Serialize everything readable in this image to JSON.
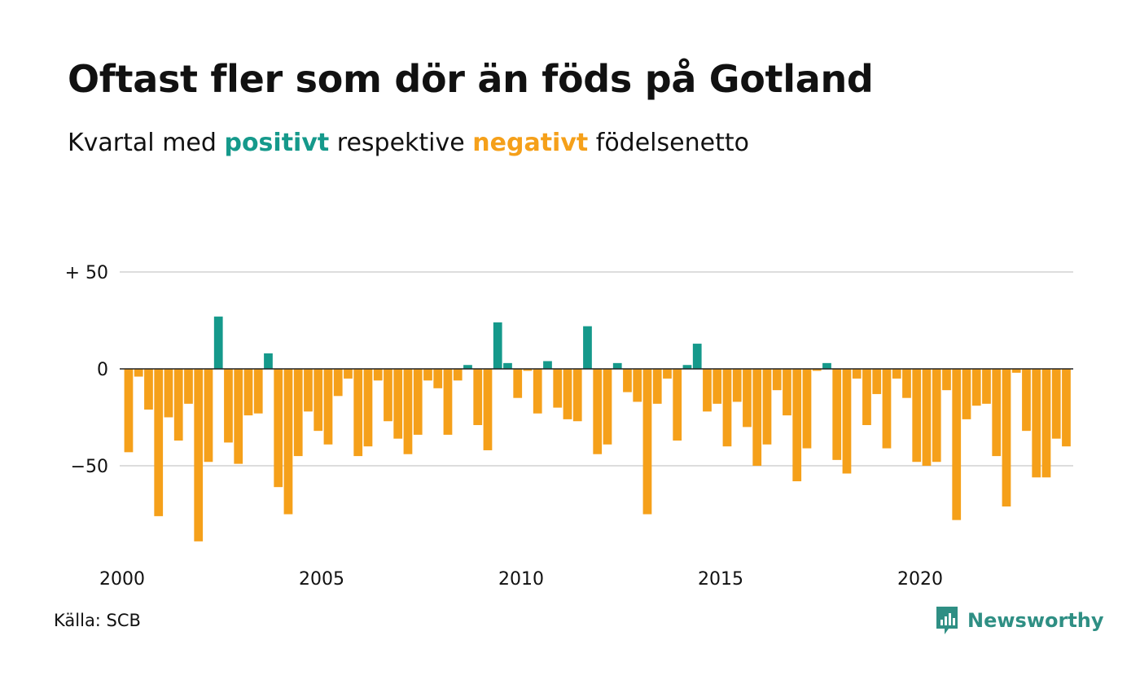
{
  "title": "Oftast fler som dör än föds på Gotland",
  "subtitle": {
    "w1": "Kvartal",
    "w2": "med",
    "positive": "positivt",
    "w3": "respektive",
    "negative": "negativt",
    "w4": "födelsenetto"
  },
  "source": "Källa: SCB",
  "logo": {
    "text": "Newsworthy",
    "icon": "newsworthy-chart-icon"
  },
  "colors": {
    "positive": "#15998b",
    "negative": "#f5a01a",
    "grid": "#dddddd",
    "axis": "#222222",
    "logo": "#2f8f84"
  },
  "chart_data": {
    "type": "bar",
    "xlabel": "",
    "ylabel": "",
    "grid": true,
    "ylim": [
      -92,
      60
    ],
    "xlim": [
      2000,
      2024
    ],
    "yticks": [
      {
        "value": 50,
        "label": "+ 50"
      },
      {
        "value": 0,
        "label": "0"
      },
      {
        "value": -50,
        "label": "−50"
      }
    ],
    "xticks": [
      {
        "value": 2000,
        "label": "2000"
      },
      {
        "value": 2005,
        "label": "2005"
      },
      {
        "value": 2010,
        "label": "2010"
      },
      {
        "value": 2015,
        "label": "2015"
      },
      {
        "value": 2020,
        "label": "2020"
      }
    ],
    "start_year": 2000,
    "periods_per_year": 4,
    "values": [
      -43,
      -4,
      -21,
      -76,
      -25,
      -37,
      -18,
      -89,
      -48,
      27,
      -38,
      -49,
      -24,
      -23,
      8,
      -61,
      -75,
      -45,
      -22,
      -32,
      -39,
      -14,
      -5,
      -45,
      -40,
      -6,
      -27,
      -36,
      -44,
      -34,
      -6,
      -10,
      -34,
      -6,
      2,
      -29,
      -42,
      24,
      3,
      -15,
      -1,
      -23,
      4,
      -20,
      -26,
      -27,
      22,
      -44,
      -39,
      3,
      -12,
      -17,
      -75,
      -18,
      -5,
      -37,
      2,
      13,
      -22,
      -18,
      -40,
      -17,
      -30,
      -50,
      -39,
      -11,
      -24,
      -58,
      -41,
      -1,
      3,
      -47,
      -54,
      -5,
      -29,
      -13,
      -41,
      -5,
      -15,
      -48,
      -50,
      -48,
      -11,
      -78,
      -26,
      -19,
      -18,
      -45,
      -71,
      -2,
      -32,
      -56,
      -56,
      -36,
      -40
    ]
  }
}
